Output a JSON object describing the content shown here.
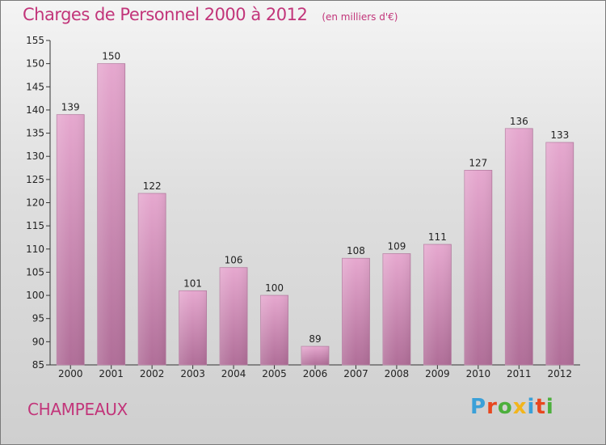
{
  "header": {
    "title": "Charges de Personnel 2000 à 2012",
    "subtitle": "(en milliers d'€)"
  },
  "footer": {
    "commune": "CHAMPEAUX",
    "logo_text": "Proxiti"
  },
  "colors": {
    "bar_top": "#e6a8cf",
    "bar_bottom": "#b06e98",
    "title": "#c2357a",
    "logo": [
      "#3aa0d8",
      "#e8471f",
      "#4caf3c",
      "#f2b51c",
      "#3aa0d8",
      "#e8471f",
      "#4caf3c"
    ]
  },
  "chart_data": {
    "type": "bar",
    "title": "Charges de Personnel 2000 à 2012",
    "subtitle": "(en milliers d'€)",
    "categories": [
      "2000",
      "2001",
      "2002",
      "2003",
      "2004",
      "2005",
      "2006",
      "2007",
      "2008",
      "2009",
      "2010",
      "2011",
      "2012"
    ],
    "values": [
      139,
      150,
      122,
      101,
      106,
      100,
      89,
      108,
      109,
      111,
      127,
      136,
      133
    ],
    "ylim": [
      85,
      155
    ],
    "yticks": [
      85,
      90,
      95,
      100,
      105,
      110,
      115,
      120,
      125,
      130,
      135,
      140,
      145,
      150,
      155
    ],
    "grid": false,
    "legend": "none"
  }
}
